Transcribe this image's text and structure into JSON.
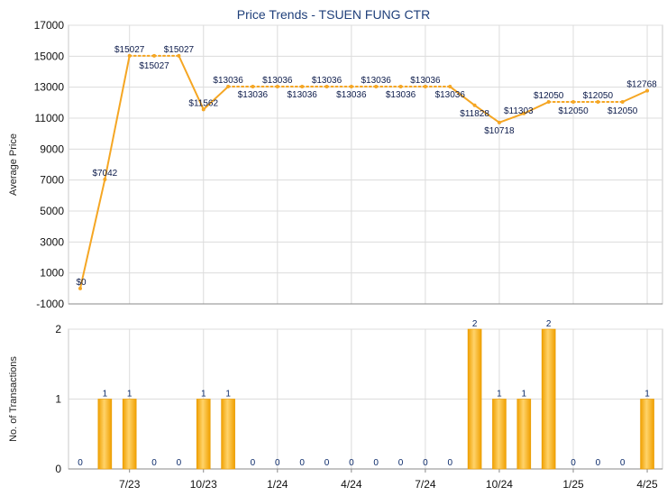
{
  "chart_data": [
    {
      "type": "line",
      "title": "Price Trends - TSUEN FUNG CTR",
      "ylabel": "Average Price",
      "ylim": [
        -1000,
        17000
      ],
      "yticks": [
        -1000,
        1000,
        3000,
        5000,
        7000,
        9000,
        11000,
        13000,
        15000,
        17000
      ],
      "series_color": "#f5a623",
      "grid": true,
      "points": [
        {
          "i": 0,
          "value": 0,
          "label": "$0"
        },
        {
          "i": 1,
          "value": 7042,
          "label": "$7042"
        },
        {
          "i": 2,
          "value": 15027,
          "label": "$15027"
        },
        {
          "i": 3,
          "value": 15027,
          "label": "$15027"
        },
        {
          "i": 4,
          "value": 15027,
          "label": "$15027"
        },
        {
          "i": 5,
          "value": 11562,
          "label": "$11562"
        },
        {
          "i": 6,
          "value": 13036,
          "label": "$13036"
        },
        {
          "i": 7,
          "value": 13036,
          "label": "$13036"
        },
        {
          "i": 8,
          "value": 13036,
          "label": "$13036"
        },
        {
          "i": 9,
          "value": 13036,
          "label": "$13036"
        },
        {
          "i": 10,
          "value": 13036,
          "label": "$13036"
        },
        {
          "i": 11,
          "value": 13036,
          "label": "$13036"
        },
        {
          "i": 12,
          "value": 13036,
          "label": "$13036"
        },
        {
          "i": 13,
          "value": 13036,
          "label": "$13036"
        },
        {
          "i": 14,
          "value": 13036,
          "label": "$13036"
        },
        {
          "i": 15,
          "value": 13036,
          "label": "$13036"
        },
        {
          "i": 16,
          "value": 11828,
          "label": "$11828"
        },
        {
          "i": 17,
          "value": 10718,
          "label": "$10718"
        },
        {
          "i": 18,
          "value": 11303,
          "label": "$11303"
        },
        {
          "i": 19,
          "value": 12050,
          "label": "$12050"
        },
        {
          "i": 20,
          "value": 12050,
          "label": "$12050"
        },
        {
          "i": 21,
          "value": 12050,
          "label": "$12050"
        },
        {
          "i": 22,
          "value": 12050,
          "label": "$12050"
        },
        {
          "i": 23,
          "value": 12768,
          "label": "$12768"
        }
      ]
    },
    {
      "type": "bar",
      "ylabel": "No. of Transactions",
      "ylim": [
        0,
        2
      ],
      "yticks": [
        0,
        1,
        2
      ],
      "bar_color": "#f5a623",
      "x_tick_labels": [
        {
          "i": 2,
          "label": "7/23"
        },
        {
          "i": 5,
          "label": "10/23"
        },
        {
          "i": 8,
          "label": "1/24"
        },
        {
          "i": 11,
          "label": "4/24"
        },
        {
          "i": 14,
          "label": "7/24"
        },
        {
          "i": 17,
          "label": "10/24"
        },
        {
          "i": 20,
          "label": "1/25"
        },
        {
          "i": 23,
          "label": "4/25"
        }
      ],
      "values": [
        0,
        1,
        1,
        0,
        0,
        1,
        1,
        0,
        0,
        0,
        0,
        0,
        0,
        0,
        0,
        0,
        2,
        1,
        1,
        2,
        0,
        0,
        0,
        1
      ]
    }
  ]
}
